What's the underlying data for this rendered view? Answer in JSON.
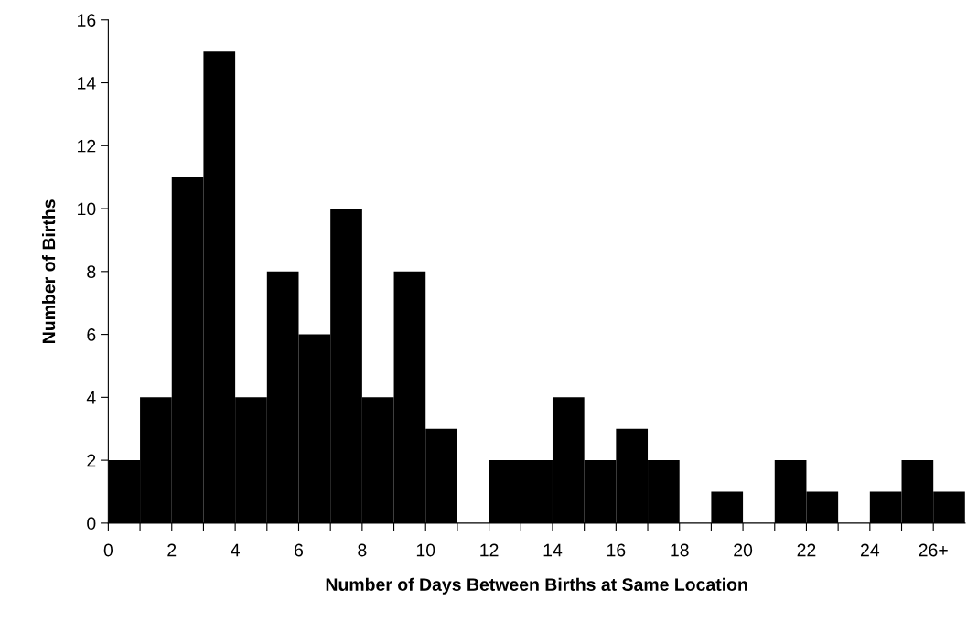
{
  "chart_data": {
    "type": "histogram",
    "xlabel": "Number of Days Between Births at Same Location",
    "ylabel": "Number of Births",
    "bins": [
      0,
      1,
      2,
      3,
      4,
      5,
      6,
      7,
      8,
      9,
      10,
      11,
      12,
      13,
      14,
      15,
      16,
      17,
      18,
      19,
      20,
      21,
      22,
      23,
      24,
      25,
      26,
      27
    ],
    "values": [
      2,
      4,
      11,
      15,
      4,
      8,
      6,
      10,
      4,
      8,
      3,
      0,
      2,
      2,
      4,
      2,
      3,
      2,
      0,
      1,
      0,
      2,
      1,
      0,
      1,
      2,
      1
    ],
    "color": "#000000",
    "xlim": [
      0,
      27
    ],
    "xticks": [
      0,
      {
        "value": 1,
        "label": null
      },
      2,
      {
        "value": 3,
        "label": null
      },
      4,
      {
        "value": 5,
        "label": null
      },
      6,
      {
        "value": 7,
        "label": null
      },
      8,
      {
        "value": 9,
        "label": null
      },
      10,
      {
        "value": 11,
        "label": null
      },
      12,
      {
        "value": 13,
        "label": null
      },
      14,
      {
        "value": 15,
        "label": null
      },
      16,
      {
        "value": 17,
        "label": null
      },
      18,
      {
        "value": 19,
        "label": null
      },
      20,
      {
        "value": 21,
        "label": null
      },
      22,
      {
        "value": 23,
        "label": null
      },
      24,
      {
        "value": 25,
        "label": null
      },
      {
        "value": 26,
        "label": "26+"
      }
    ],
    "ylim": [
      0,
      16
    ],
    "yticks": [
      0,
      2,
      4,
      6,
      8,
      10,
      12,
      14,
      16
    ],
    "grid": false,
    "legend": false
  }
}
